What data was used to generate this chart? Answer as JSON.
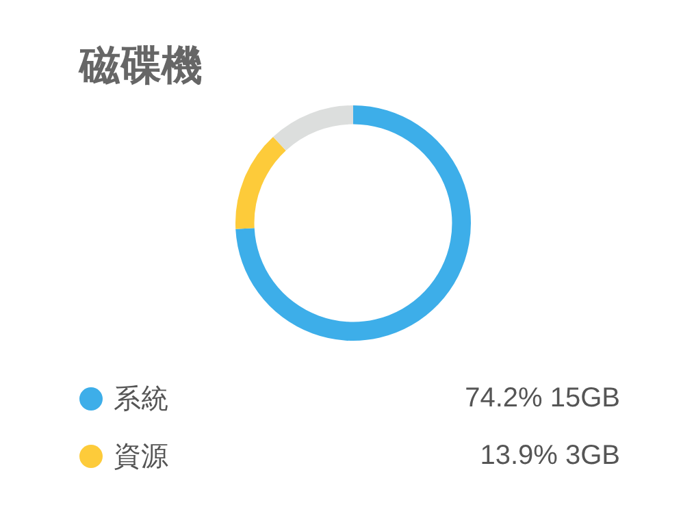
{
  "chart_data": {
    "type": "donut",
    "title": "磁碟機",
    "categories": [
      "系統",
      "資源",
      null
    ],
    "values": [
      74.2,
      13.9,
      11.9
    ],
    "colors": [
      "#3daee9",
      "#fdcb3a",
      "#dcdedd"
    ],
    "value_labels": [
      "74.2% 15GB",
      "13.9% 3GB",
      null
    ],
    "legend": "bottom"
  }
}
